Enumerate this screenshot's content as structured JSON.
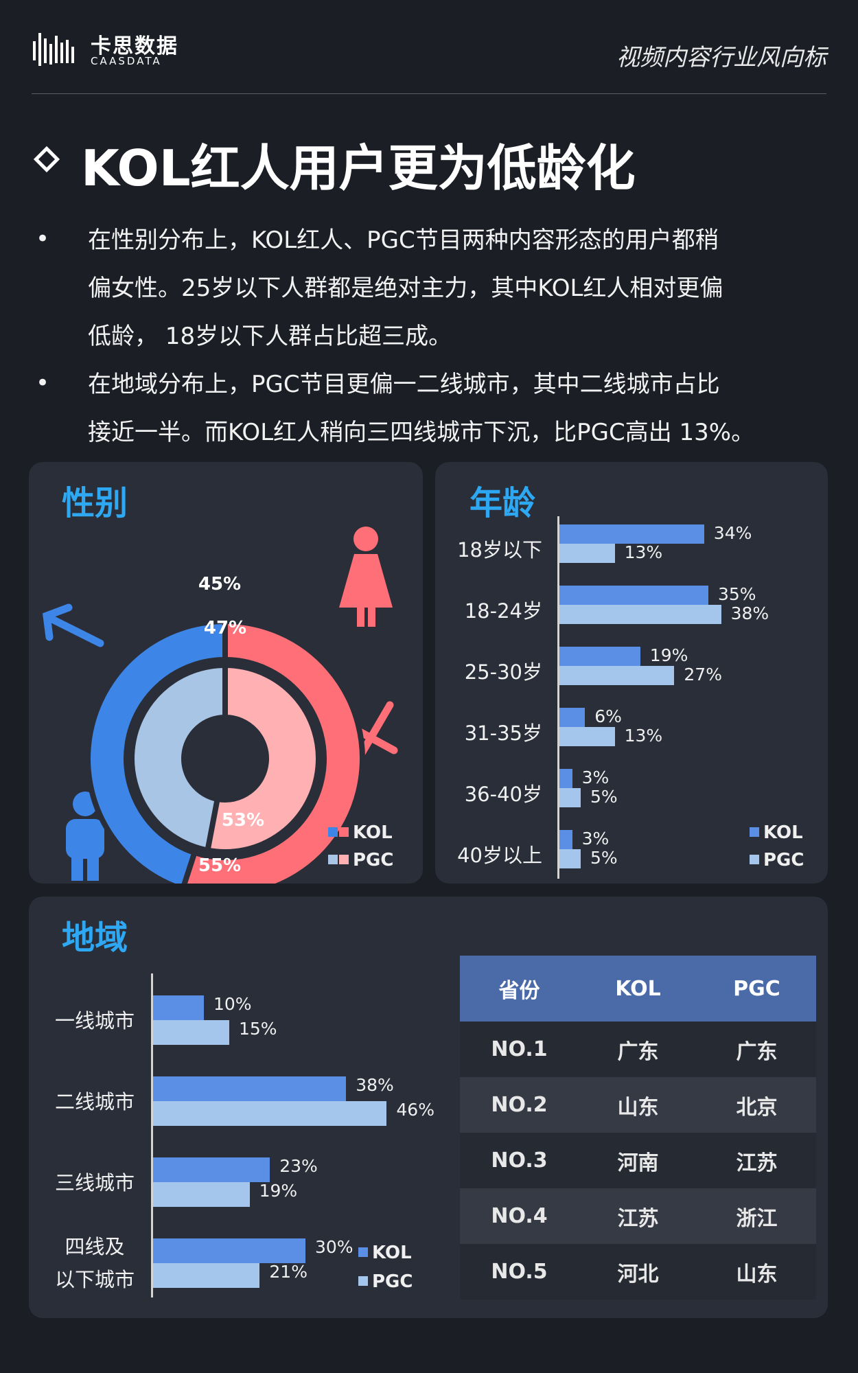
{
  "header": {
    "logo_cn": "卡思数据",
    "logo_en": "CAASDATA",
    "tag": "视频内容行业风向标"
  },
  "title": "KOL红人用户更为低龄化",
  "bullets": [
    {
      "lines": [
        "在性别分布上，KOL红人、PGC节目两种内容形态的用户都稍",
        "偏女性。25岁以下人群都是绝对主力，其中KOL红人相对更偏",
        "低龄， 18岁以下人群占比超三成。"
      ]
    },
    {
      "lines": [
        "在地域分布上，PGC节目更偏一二线城市，其中二线城市占比",
        "接近一半。而KOL红人稍向三四线城市下沉，比PGC高出 13%。"
      ]
    }
  ],
  "legend": {
    "kol": "KOL",
    "pgc": "PGC"
  },
  "colors": {
    "kol": "#5b8fe6",
    "pgc": "#a4c6ec",
    "kol_male": "#3d86e8",
    "kol_female": "#ff6f78",
    "pgc_male": "#a9c5e6",
    "pgc_female": "#ffb0b3",
    "accent": "#2ea8f3"
  },
  "chart_data": [
    {
      "type": "pie",
      "title": "性别",
      "series": [
        {
          "name": "KOL",
          "labels": [
            "男",
            "女"
          ],
          "values": [
            45,
            55
          ],
          "value_labels": [
            "45%",
            "55%"
          ]
        },
        {
          "name": "PGC",
          "labels": [
            "男",
            "女"
          ],
          "values": [
            47,
            53
          ],
          "value_labels": [
            "47%",
            "53%"
          ]
        }
      ],
      "legend_position": "bottom-right",
      "icons": [
        "male-figure-icon",
        "female-figure-icon",
        "male-symbol-icon",
        "female-symbol-icon"
      ]
    },
    {
      "type": "bar",
      "orientation": "horizontal",
      "title": "年龄",
      "categories": [
        "18岁以下",
        "18-24岁",
        "25-30岁",
        "31-35岁",
        "36-40岁",
        "40岁以上"
      ],
      "series": [
        {
          "name": "KOL",
          "values": [
            34,
            35,
            19,
            6,
            3,
            3
          ],
          "value_labels": [
            "34%",
            "35%",
            "19%",
            "6%",
            "3%",
            "3%"
          ]
        },
        {
          "name": "PGC",
          "values": [
            13,
            38,
            27,
            13,
            5,
            5
          ],
          "value_labels": [
            "13%",
            "38%",
            "27%",
            "13%",
            "5%",
            "5%"
          ]
        }
      ],
      "legend_position": "bottom-right"
    },
    {
      "type": "bar",
      "orientation": "horizontal",
      "title": "地域",
      "categories": [
        "一线城市",
        "二线城市",
        "三线城市",
        "四线及|以下城市"
      ],
      "series": [
        {
          "name": "KOL",
          "values": [
            10,
            38,
            23,
            30
          ],
          "value_labels": [
            "10%",
            "38%",
            "23%",
            "30%"
          ]
        },
        {
          "name": "PGC",
          "values": [
            15,
            46,
            19,
            21
          ],
          "value_labels": [
            "15%",
            "46%",
            "19%",
            "21%"
          ]
        }
      ],
      "legend_position": "bottom-right"
    },
    {
      "type": "table",
      "columns": [
        "省份",
        "KOL",
        "PGC"
      ],
      "rows": [
        [
          "NO.1",
          "广东",
          "广东"
        ],
        [
          "NO.2",
          "山东",
          "北京"
        ],
        [
          "NO.3",
          "河南",
          "江苏"
        ],
        [
          "NO.4",
          "江苏",
          "浙江"
        ],
        [
          "NO.5",
          "河北",
          "山东"
        ]
      ]
    }
  ]
}
